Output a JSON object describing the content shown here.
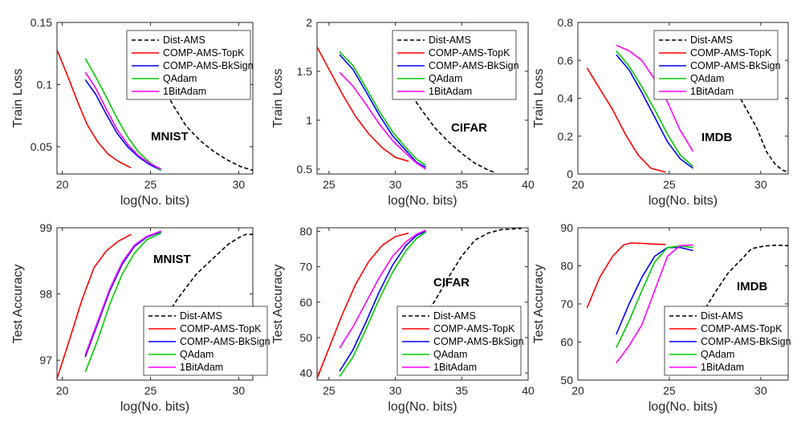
{
  "chart_data": [
    {
      "type": "line",
      "row": 0,
      "col": 0,
      "xlabel": "log(No. bits)",
      "ylabel": "Train Loss",
      "xlim": [
        19.7,
        30.8
      ],
      "ylim": [
        0.028,
        0.15
      ],
      "xticks": [
        20,
        25,
        30
      ],
      "xticklabels": [
        "20",
        "25",
        "30"
      ],
      "yticks": [
        0.05,
        0.1,
        0.15
      ],
      "yticklabels": [
        "0.05",
        "0.1",
        "0.15"
      ],
      "annotation": "MNIST",
      "legend_position": "top-right",
      "series": [
        {
          "name": "Dist-AMS",
          "style": "dashed",
          "color": "#000000",
          "x": [
            25.6,
            26.3,
            27.0,
            27.8,
            28.6,
            29.4,
            30.1,
            30.8
          ],
          "y": [
            0.101,
            0.083,
            0.067,
            0.055,
            0.046,
            0.039,
            0.034,
            0.031
          ]
        },
        {
          "name": "COMP-AMS-TopK",
          "style": "solid",
          "color": "#ff0000",
          "x": [
            19.7,
            20.3,
            20.9,
            21.4,
            22.0,
            22.6,
            23.2,
            23.9
          ],
          "y": [
            0.128,
            0.107,
            0.085,
            0.068,
            0.054,
            0.044,
            0.038,
            0.033
          ]
        },
        {
          "name": "COMP-AMS-BkSign",
          "style": "solid",
          "color": "#0000ff",
          "x": [
            21.3,
            21.9,
            22.5,
            23.1,
            23.7,
            24.3,
            24.9,
            25.6
          ],
          "y": [
            0.104,
            0.092,
            0.076,
            0.061,
            0.05,
            0.042,
            0.036,
            0.031
          ]
        },
        {
          "name": "QAdam",
          "style": "solid",
          "color": "#00cc00",
          "x": [
            21.3,
            21.9,
            22.5,
            23.1,
            23.7,
            24.3,
            24.9,
            25.6
          ],
          "y": [
            0.121,
            0.106,
            0.09,
            0.073,
            0.058,
            0.046,
            0.038,
            0.031
          ]
        },
        {
          "name": "1BitAdam",
          "style": "solid",
          "color": "#ff00ff",
          "x": [
            21.3,
            21.9,
            22.5,
            23.1,
            23.7,
            24.3,
            24.9,
            25.6
          ],
          "y": [
            0.11,
            0.097,
            0.08,
            0.064,
            0.052,
            0.043,
            0.037,
            0.032
          ]
        }
      ]
    },
    {
      "type": "line",
      "row": 0,
      "col": 1,
      "xlabel": "log(No. bits)",
      "ylabel": "Train Loss",
      "xlim": [
        24.1,
        40
      ],
      "ylim": [
        0.45,
        2
      ],
      "xticks": [
        25,
        30,
        35,
        40
      ],
      "xticklabels": [
        "25",
        "30",
        "35",
        "40"
      ],
      "yticks": [
        0.5,
        1,
        1.5,
        2
      ],
      "yticklabels": [
        "0.5",
        "1",
        "1.5",
        "2"
      ],
      "annotation": "CIFAR",
      "legend_position": "top-right",
      "series": [
        {
          "name": "Dist-AMS",
          "style": "dashed",
          "color": "#000000",
          "x": [
            31.0,
            32.0,
            33.0,
            34.0,
            35.0,
            36.0,
            37.0,
            37.4
          ],
          "y": [
            1.3,
            1.1,
            0.92,
            0.78,
            0.66,
            0.56,
            0.49,
            0.47
          ]
        },
        {
          "name": "COMP-AMS-TopK",
          "style": "solid",
          "color": "#ff0000",
          "x": [
            24.1,
            25.0,
            26.0,
            27.0,
            28.0,
            29.0,
            30.0,
            31.0
          ],
          "y": [
            1.75,
            1.52,
            1.27,
            1.04,
            0.86,
            0.72,
            0.62,
            0.58
          ]
        },
        {
          "name": "COMP-AMS-BkSign",
          "style": "solid",
          "color": "#0000ff",
          "x": [
            25.8,
            26.8,
            27.8,
            28.8,
            29.8,
            30.8,
            31.6,
            32.3
          ],
          "y": [
            1.67,
            1.52,
            1.29,
            1.05,
            0.84,
            0.69,
            0.57,
            0.52
          ]
        },
        {
          "name": "QAdam",
          "style": "solid",
          "color": "#00cc00",
          "x": [
            25.8,
            26.8,
            27.8,
            28.8,
            29.8,
            30.8,
            31.6,
            32.3
          ],
          "y": [
            1.7,
            1.56,
            1.33,
            1.09,
            0.88,
            0.72,
            0.6,
            0.54
          ]
        },
        {
          "name": "1BitAdam",
          "style": "solid",
          "color": "#ff00ff",
          "x": [
            25.8,
            26.8,
            27.8,
            28.8,
            29.8,
            30.8,
            31.6,
            32.3
          ],
          "y": [
            1.49,
            1.35,
            1.16,
            0.96,
            0.79,
            0.66,
            0.56,
            0.5
          ]
        }
      ]
    },
    {
      "type": "line",
      "row": 0,
      "col": 2,
      "xlabel": "log(No. bits)",
      "ylabel": "Train Loss",
      "xlim": [
        20,
        31.5
      ],
      "ylim": [
        0,
        0.8
      ],
      "xticks": [
        20,
        25,
        30
      ],
      "xticklabels": [
        "20",
        "25",
        "30"
      ],
      "yticks": [
        0,
        0.2,
        0.4,
        0.6,
        0.8
      ],
      "yticklabels": [
        "0",
        "0.2",
        "0.4",
        "0.6",
        "0.8"
      ],
      "annotation": "IMDB",
      "legend_position": "top-right",
      "series": [
        {
          "name": "Dist-AMS",
          "style": "dashed",
          "color": "#000000",
          "x": [
            27.0,
            28.0,
            29.0,
            29.8,
            30.3,
            30.8,
            31.2,
            31.5
          ],
          "y": [
            0.72,
            0.55,
            0.38,
            0.24,
            0.12,
            0.05,
            0.02,
            0.01
          ]
        },
        {
          "name": "COMP-AMS-TopK",
          "style": "solid",
          "color": "#ff0000",
          "x": [
            20.5,
            21.2,
            21.9,
            22.6,
            23.3,
            24.0,
            24.8
          ],
          "y": [
            0.56,
            0.45,
            0.34,
            0.21,
            0.1,
            0.03,
            0.01
          ]
        },
        {
          "name": "COMP-AMS-BkSign",
          "style": "solid",
          "color": "#0000ff",
          "x": [
            22.1,
            22.8,
            23.5,
            24.2,
            24.9,
            25.6,
            26.3
          ],
          "y": [
            0.63,
            0.55,
            0.43,
            0.3,
            0.17,
            0.08,
            0.03
          ]
        },
        {
          "name": "QAdam",
          "style": "solid",
          "color": "#00cc00",
          "x": [
            22.1,
            22.8,
            23.5,
            24.2,
            24.9,
            25.6,
            26.3
          ],
          "y": [
            0.65,
            0.57,
            0.46,
            0.34,
            0.21,
            0.1,
            0.04
          ]
        },
        {
          "name": "1BitAdam",
          "style": "solid",
          "color": "#ff00ff",
          "x": [
            22.1,
            22.8,
            23.5,
            24.2,
            24.9,
            25.6,
            26.3
          ],
          "y": [
            0.68,
            0.65,
            0.6,
            0.5,
            0.38,
            0.23,
            0.12
          ]
        }
      ]
    },
    {
      "type": "line",
      "row": 1,
      "col": 0,
      "xlabel": "log(No. bits)",
      "ylabel": "Test Accuracy",
      "xlim": [
        19.7,
        30.8
      ],
      "ylim": [
        96.7,
        99
      ],
      "xticks": [
        20,
        25,
        30
      ],
      "xticklabels": [
        "20",
        "25",
        "30"
      ],
      "yticks": [
        97,
        98,
        99
      ],
      "yticklabels": [
        "97",
        "98",
        "99"
      ],
      "annotation": "MNIST",
      "legend_position": "bottom-right",
      "series": [
        {
          "name": "Dist-AMS",
          "style": "dashed",
          "color": "#000000",
          "x": [
            25.6,
            26.6,
            27.6,
            28.6,
            29.4,
            30.0,
            30.4,
            30.8
          ],
          "y": [
            97.55,
            97.95,
            98.3,
            98.55,
            98.75,
            98.85,
            98.9,
            98.9
          ]
        },
        {
          "name": "COMP-AMS-TopK",
          "style": "solid",
          "color": "#ff0000",
          "x": [
            19.7,
            20.4,
            21.1,
            21.8,
            22.5,
            23.2,
            23.9
          ],
          "y": [
            96.72,
            97.3,
            97.9,
            98.4,
            98.65,
            98.8,
            98.9
          ]
        },
        {
          "name": "COMP-AMS-BkSign",
          "style": "solid",
          "color": "#0000ff",
          "x": [
            21.3,
            22.0,
            22.7,
            23.4,
            24.1,
            24.8,
            25.6
          ],
          "y": [
            97.05,
            97.55,
            98.05,
            98.45,
            98.72,
            98.86,
            98.94
          ]
        },
        {
          "name": "QAdam",
          "style": "solid",
          "color": "#00cc00",
          "x": [
            21.3,
            22.0,
            22.7,
            23.4,
            24.1,
            24.8,
            25.6
          ],
          "y": [
            96.82,
            97.3,
            97.85,
            98.3,
            98.62,
            98.82,
            98.92
          ]
        },
        {
          "name": "1BitAdam",
          "style": "solid",
          "color": "#ff00ff",
          "x": [
            21.3,
            22.0,
            22.7,
            23.4,
            24.1,
            24.8,
            25.6
          ],
          "y": [
            97.08,
            97.58,
            98.08,
            98.48,
            98.74,
            98.87,
            98.95
          ]
        }
      ]
    },
    {
      "type": "line",
      "row": 1,
      "col": 1,
      "xlabel": "log(No. bits)",
      "ylabel": "Test Accuracy",
      "xlim": [
        24.1,
        40
      ],
      "ylim": [
        38,
        81
      ],
      "xticks": [
        25,
        30,
        35,
        40
      ],
      "xticklabels": [
        "25",
        "30",
        "35",
        "40"
      ],
      "yticks": [
        40,
        50,
        60,
        70,
        80
      ],
      "yticklabels": [
        "40",
        "50",
        "60",
        "70",
        "80"
      ],
      "annotation": "CIFAR",
      "legend_position": "bottom-right",
      "series": [
        {
          "name": "Dist-AMS",
          "style": "dashed",
          "color": "#000000",
          "x": [
            32.3,
            33.0,
            34.0,
            35.0,
            36.0,
            37.0,
            38.0,
            39.5
          ],
          "y": [
            56.5,
            60.5,
            67.0,
            73.0,
            77.5,
            79.5,
            80.5,
            80.8
          ]
        },
        {
          "name": "COMP-AMS-TopK",
          "style": "solid",
          "color": "#ff0000",
          "x": [
            24.1,
            25.0,
            26.0,
            27.0,
            28.0,
            29.0,
            30.0,
            31.0
          ],
          "y": [
            38.5,
            47.0,
            56.5,
            65.0,
            71.5,
            76.0,
            78.5,
            79.5
          ]
        },
        {
          "name": "COMP-AMS-BkSign",
          "style": "solid",
          "color": "#0000ff",
          "x": [
            25.8,
            26.8,
            27.8,
            28.8,
            29.8,
            30.8,
            31.6,
            32.3
          ],
          "y": [
            40.5,
            46.5,
            54.5,
            63.0,
            70.5,
            76.0,
            78.8,
            80.0
          ]
        },
        {
          "name": "QAdam",
          "style": "solid",
          "color": "#00cc00",
          "x": [
            25.8,
            26.8,
            27.8,
            28.8,
            29.8,
            30.8,
            31.6,
            32.3
          ],
          "y": [
            39.0,
            44.5,
            52.5,
            61.0,
            68.5,
            74.5,
            78.0,
            79.8
          ]
        },
        {
          "name": "1BitAdam",
          "style": "solid",
          "color": "#ff00ff",
          "x": [
            25.8,
            26.8,
            27.8,
            28.8,
            29.8,
            30.8,
            31.6,
            32.3
          ],
          "y": [
            47.0,
            53.0,
            60.0,
            67.0,
            73.0,
            77.0,
            79.2,
            80.3
          ]
        }
      ]
    },
    {
      "type": "line",
      "row": 1,
      "col": 2,
      "xlabel": "log(No. bits)",
      "ylabel": "Test Accuracy",
      "xlim": [
        20,
        31.5
      ],
      "ylim": [
        50,
        90
      ],
      "xticks": [
        20,
        25,
        30
      ],
      "xticklabels": [
        "20",
        "25",
        "30"
      ],
      "yticks": [
        50,
        60,
        70,
        80,
        90
      ],
      "yticklabels": [
        "50",
        "60",
        "70",
        "80",
        "90"
      ],
      "annotation": "IMDB",
      "legend_position": "bottom-right",
      "series": [
        {
          "name": "Dist-AMS",
          "style": "dashed",
          "color": "#000000",
          "x": [
            26.8,
            27.5,
            28.2,
            28.9,
            29.5,
            30.2,
            30.8,
            31.5
          ],
          "y": [
            67.5,
            73.0,
            78.0,
            81.5,
            84.5,
            85.2,
            85.4,
            85.3
          ]
        },
        {
          "name": "COMP-AMS-TopK",
          "style": "solid",
          "color": "#ff0000",
          "x": [
            20.5,
            21.2,
            21.9,
            22.5,
            22.9,
            23.5,
            24.2,
            24.8
          ],
          "y": [
            69.0,
            77.0,
            82.5,
            85.5,
            86.0,
            85.9,
            85.7,
            85.6
          ]
        },
        {
          "name": "COMP-AMS-BkSign",
          "style": "solid",
          "color": "#0000ff",
          "x": [
            22.1,
            22.8,
            23.5,
            24.2,
            24.9,
            25.6,
            26.3
          ],
          "y": [
            62.0,
            70.0,
            77.0,
            82.5,
            84.8,
            84.8,
            84.0
          ]
        },
        {
          "name": "QAdam",
          "style": "solid",
          "color": "#00cc00",
          "x": [
            22.1,
            22.8,
            23.5,
            24.2,
            24.9,
            25.6,
            26.3
          ],
          "y": [
            58.5,
            65.5,
            73.5,
            81.0,
            84.8,
            85.2,
            84.8
          ]
        },
        {
          "name": "1BitAdam",
          "style": "solid",
          "color": "#ff00ff",
          "x": [
            22.1,
            22.8,
            23.5,
            24.2,
            24.9,
            25.6,
            26.3
          ],
          "y": [
            54.5,
            59.0,
            64.5,
            73.5,
            82.5,
            85.3,
            85.5
          ]
        }
      ]
    }
  ]
}
